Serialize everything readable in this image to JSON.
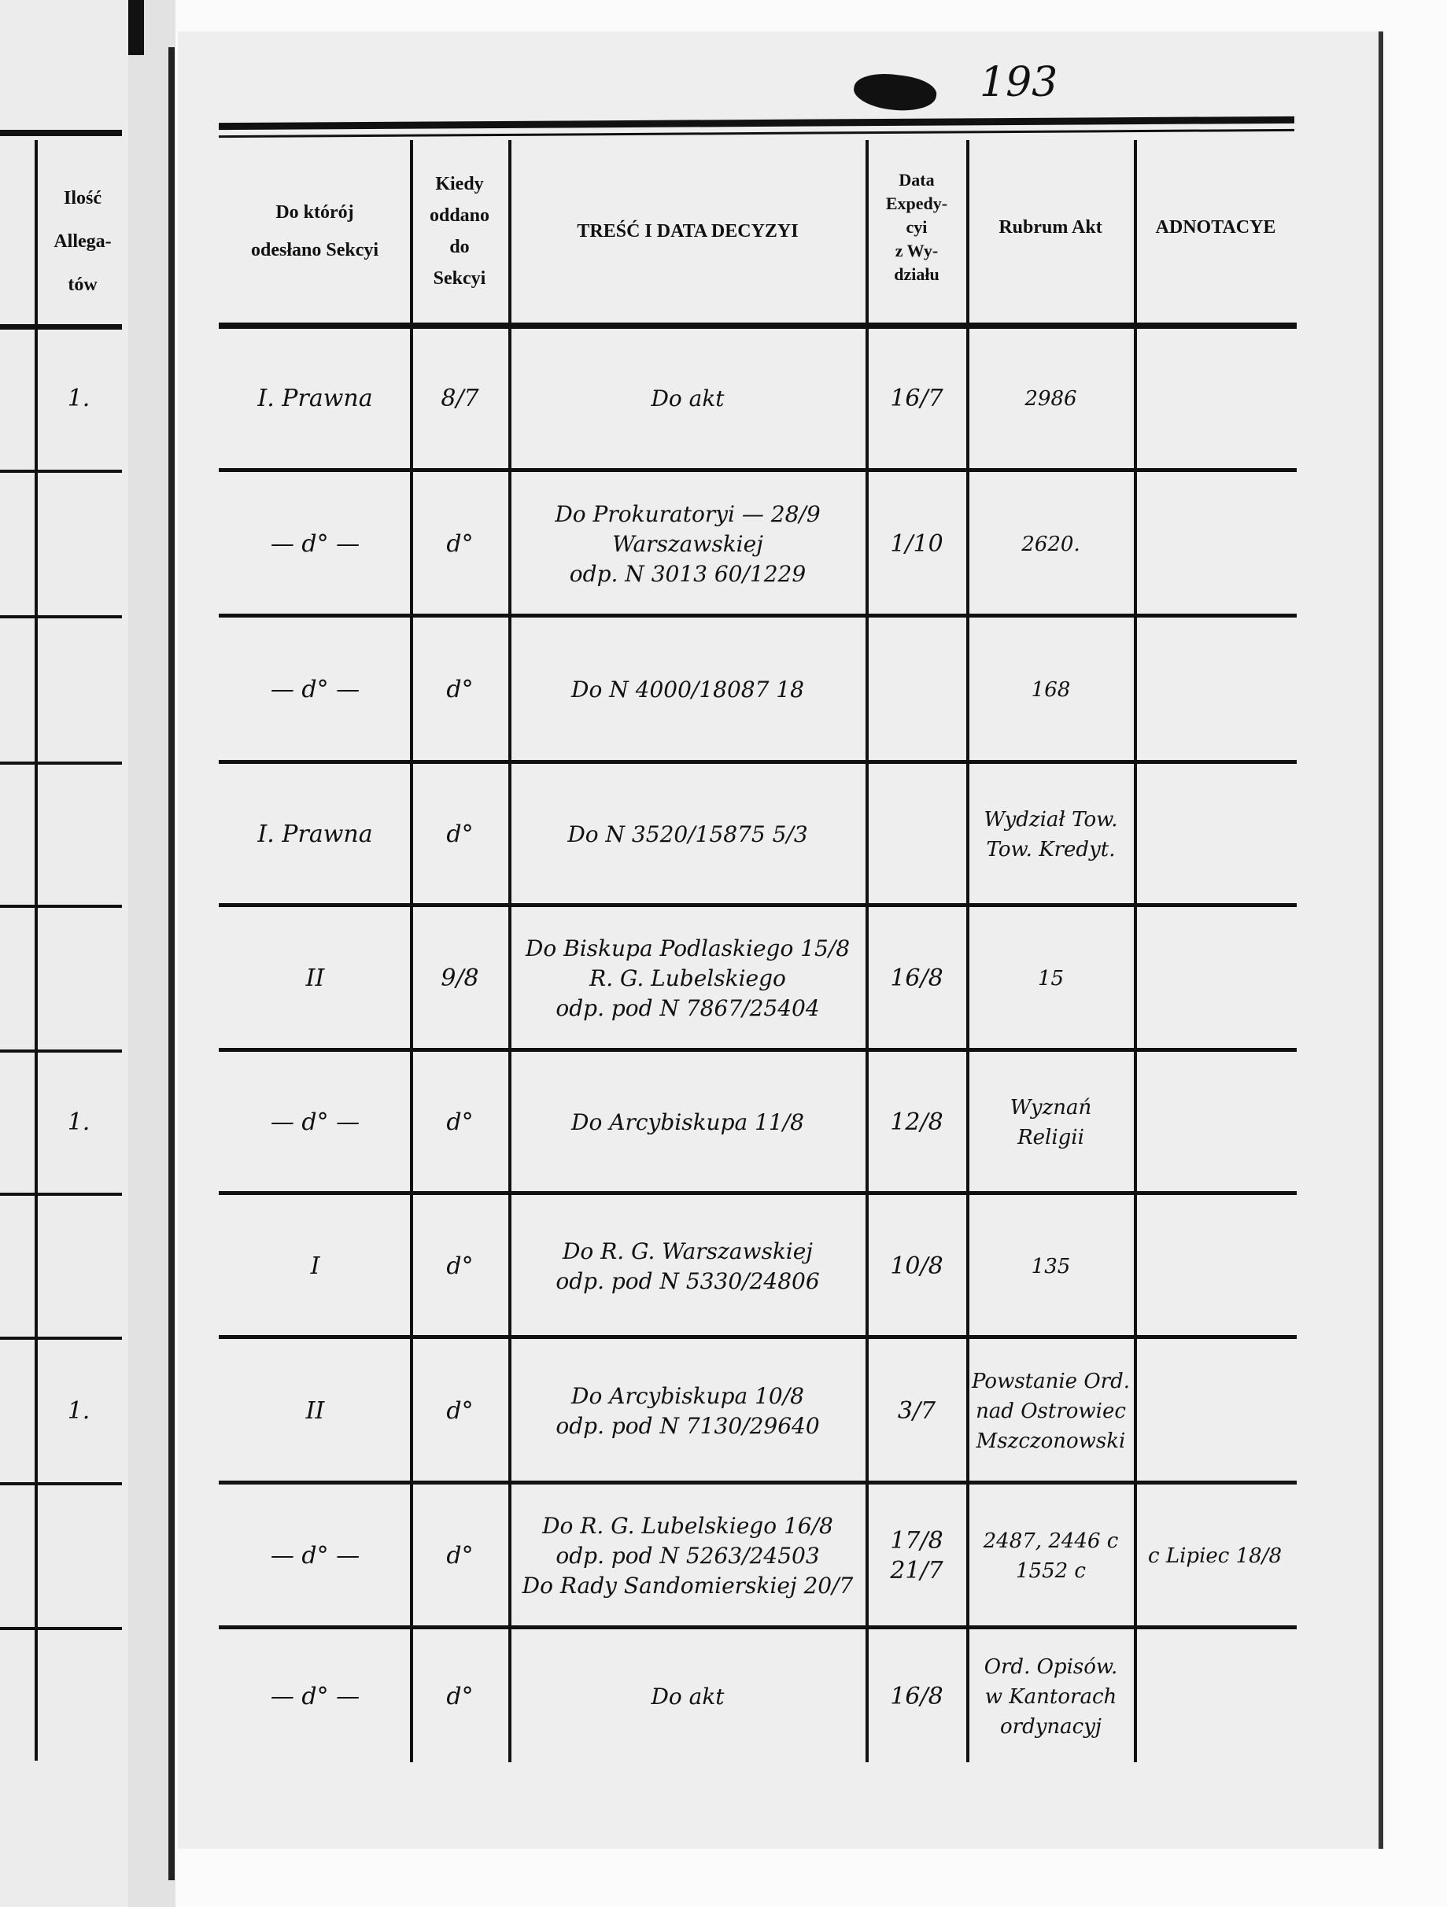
{
  "page_number": "193",
  "left_page": {
    "column_header": [
      "Ilość",
      "Allega-",
      "tów"
    ],
    "counts": [
      "1.",
      "",
      "",
      "",
      "",
      "1.",
      "",
      "1.",
      "",
      ""
    ]
  },
  "headers": {
    "section": [
      "Do którój",
      "odesłano Sekcyi"
    ],
    "when": [
      "Kiedy",
      "oddano",
      "do",
      "Sekcyi"
    ],
    "content": "TREŚĆ I DATA DECYZYI",
    "expedition": [
      "Data",
      "Expedy-",
      "cyi",
      "z Wy-",
      "działu"
    ],
    "rubrum": "Rubrum Akt",
    "notes": "ADNOTACYE"
  },
  "rows": [
    {
      "section": [
        "I. Prawna"
      ],
      "when": [
        "8/7"
      ],
      "content": [
        "Do akt"
      ],
      "expedition": [
        "16/7"
      ],
      "rubrum": [
        "2986"
      ],
      "notes": [
        ""
      ]
    },
    {
      "section": [
        "— d° —"
      ],
      "when": [
        "d°"
      ],
      "content": [
        "Do Prokuratoryi — 28/9",
        "Warszawskiej",
        "odp. N 3013 60/1229"
      ],
      "expedition": [
        "1/10"
      ],
      "rubrum": [
        "2620."
      ],
      "notes": [
        ""
      ]
    },
    {
      "section": [
        "— d° —"
      ],
      "when": [
        "d°"
      ],
      "content": [
        "Do N 4000/18087 18"
      ],
      "expedition": [
        ""
      ],
      "rubrum": [
        "168"
      ],
      "notes": [
        ""
      ]
    },
    {
      "section": [
        "I. Prawna"
      ],
      "when": [
        "d°"
      ],
      "content": [
        "Do N 3520/15875 5/3"
      ],
      "expedition": [
        ""
      ],
      "rubrum": [
        "Wydział Tow.",
        "Tow. Kredyt."
      ],
      "notes": [
        ""
      ]
    },
    {
      "section": [
        "II"
      ],
      "when": [
        "9/8"
      ],
      "content": [
        "Do Biskupa Podlaskiego 15/8",
        "R. G. Lubelskiego",
        "odp. pod N 7867/25404"
      ],
      "expedition": [
        "16/8"
      ],
      "rubrum": [
        "15"
      ],
      "notes": [
        ""
      ]
    },
    {
      "section": [
        "— d° —"
      ],
      "when": [
        "d°"
      ],
      "content": [
        "Do Arcybiskupa 11/8"
      ],
      "expedition": [
        "12/8"
      ],
      "rubrum": [
        "Wyznań",
        "Religii"
      ],
      "notes": [
        ""
      ]
    },
    {
      "section": [
        "I"
      ],
      "when": [
        "d°"
      ],
      "content": [
        "Do R. G. Warszawskiej",
        "odp. pod N 5330/24806"
      ],
      "expedition": [
        "10/8"
      ],
      "rubrum": [
        "135"
      ],
      "notes": [
        ""
      ]
    },
    {
      "section": [
        "II"
      ],
      "when": [
        "d°"
      ],
      "content": [
        "Do Arcybiskupa 10/8",
        "odp. pod N 7130/29640"
      ],
      "expedition": [
        "3/7"
      ],
      "rubrum": [
        "Powstanie Ord.",
        "nad Ostrowiec",
        "Mszczonowski"
      ],
      "notes": [
        ""
      ]
    },
    {
      "section": [
        "— d° —"
      ],
      "when": [
        "d°"
      ],
      "content": [
        "Do R. G. Lubelskiego 16/8",
        "odp. pod N 5263/24503",
        "Do Rady Sandomierskiej 20/7"
      ],
      "expedition": [
        "17/8",
        "21/7"
      ],
      "rubrum": [
        "2487, 2446 c",
        "1552 c"
      ],
      "notes": [
        "c Lipiec 18/8"
      ]
    },
    {
      "section": [
        "— d° —"
      ],
      "when": [
        "d°"
      ],
      "content": [
        "Do akt"
      ],
      "expedition": [
        "16/8"
      ],
      "rubrum": [
        "Ord. Opisów.",
        "w Kantorach",
        "ordynacyj"
      ],
      "notes": [
        ""
      ]
    }
  ]
}
